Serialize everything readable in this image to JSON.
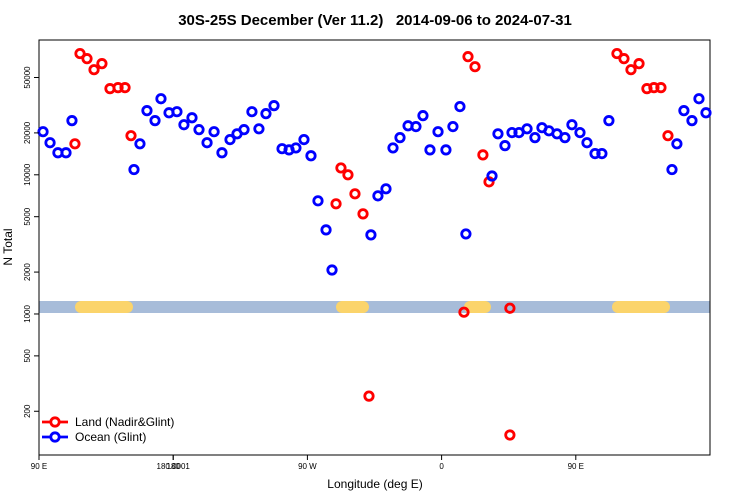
{
  "chart_data": {
    "type": "scatter",
    "title": "30S-25S December (Ver 11.2)   2014-09-06 to 2024-07-31",
    "x_label": "Longitude (deg E)",
    "y_label": "N Total",
    "xlim": [
      90,
      540
    ],
    "xticks": [
      {
        "value": 90,
        "label": "90 E"
      },
      180,
      {
        "value": 270,
        "label": "90 W"
      },
      {
        "value": 360,
        "label": "0"
      },
      {
        "value": 450,
        "label": "90 E"
      },
      180.0001
    ],
    "ylim": [
      97,
      93000
    ],
    "log_y": true,
    "yticks": [
      200,
      500,
      1000,
      2000,
      5000,
      10000,
      20000,
      50000
    ],
    "legend": "lower left",
    "series": [
      {
        "name": "Land (Nadir&Glint)",
        "color": "#ff0000",
        "x": [
          114.1,
          117.5,
          122.2,
          126.9,
          132.2,
          137.6,
          143.0,
          147.7,
          151.7,
          289.2,
          292.5,
          297.2,
          301.9,
          307.3,
          311.3,
          375.0,
          377.7,
          382.4,
          387.7,
          391.8,
          405.8,
          405.8,
          477.6,
          482.3,
          487.0,
          492.4,
          497.7,
          502.4,
          507.1,
          511.8
        ],
        "values": [
          16700,
          74300,
          68300,
          56900,
          62900,
          41600,
          42300,
          42300,
          19100,
          6190,
          11200,
          10000,
          7300,
          5240,
          257,
          1030,
          70600,
          59800,
          13900,
          8900,
          135,
          1100,
          74300,
          68300,
          56900,
          62900,
          41600,
          42300,
          42300,
          19100
        ]
      },
      {
        "name": "Ocean (Glint)",
        "color": "#0000ff",
        "x": [
          92.7,
          97.4,
          102.7,
          108.1,
          112.1,
          153.7,
          157.7,
          162.4,
          167.8,
          171.8,
          177.2,
          182.5,
          187.2,
          192.6,
          197.3,
          202.7,
          207.4,
          212.7,
          218.1,
          222.8,
          227.5,
          232.8,
          237.5,
          242.2,
          247.6,
          253.0,
          257.7,
          262.3,
          267.7,
          272.4,
          277.1,
          282.5,
          286.5,
          312.6,
          317.3,
          322.7,
          327.4,
          332.1,
          337.5,
          342.8,
          347.5,
          352.2,
          357.6,
          362.9,
          367.6,
          372.3,
          376.3,
          393.8,
          397.8,
          402.5,
          407.2,
          411.9,
          417.3,
          422.6,
          427.3,
          432.0,
          437.4,
          442.7,
          447.4,
          452.8,
          457.5,
          462.9,
          467.5,
          472.2,
          514.5,
          517.8,
          522.5,
          527.9,
          532.6,
          537.3
        ],
        "values": [
          20400,
          17000,
          14400,
          14400,
          24500,
          10900,
          16700,
          28900,
          24500,
          35200,
          27900,
          28400,
          22900,
          25700,
          21100,
          17000,
          20400,
          14400,
          17900,
          19700,
          21100,
          28400,
          21400,
          27500,
          31400,
          15400,
          15100,
          15600,
          17900,
          13700,
          6500,
          4020,
          2070,
          3700,
          7060,
          7930,
          15600,
          18500,
          22500,
          22200,
          26600,
          15100,
          20400,
          15100,
          22200,
          30900,
          3760,
          9800,
          19700,
          16200,
          20100,
          20100,
          21400,
          18500,
          21800,
          20700,
          19700,
          18500,
          22900,
          20100,
          17000,
          14200,
          14200,
          24500,
          10900,
          16700,
          28900,
          24500,
          35200,
          27900
        ]
      }
    ]
  }
}
